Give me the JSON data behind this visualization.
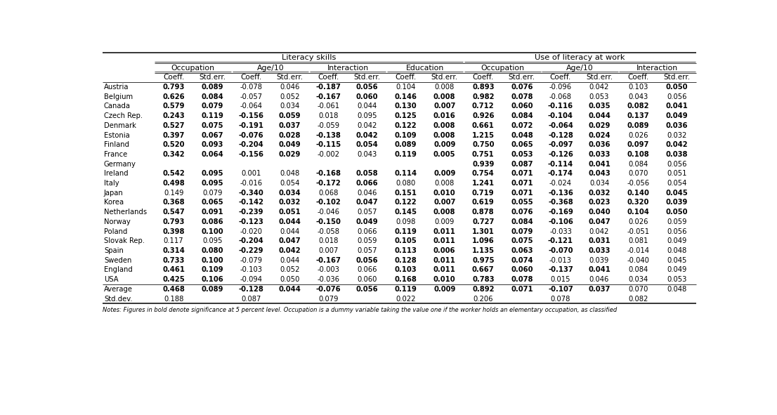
{
  "countries": [
    "Austria",
    "Belgium",
    "Canada",
    "Czech Rep.",
    "Denmark",
    "Estonia",
    "Finland",
    "France",
    "Germany",
    "Ireland",
    "Italy",
    "Japan",
    "Korea",
    "Netherlands",
    "Norway",
    "Poland",
    "Slovak Rep.",
    "Spain",
    "Sweden",
    "England",
    "USA",
    "Average",
    "Std.dev."
  ],
  "data": {
    "Austria": [
      "0.793",
      "0.089",
      "-0.078",
      "0.046",
      "-0.187",
      "0.056",
      "0.104",
      "0.008",
      "0.893",
      "0.076",
      "-0.096",
      "0.042",
      "0.103",
      "0.050"
    ],
    "Belgium": [
      "0.626",
      "0.084",
      "-0.057",
      "0.052",
      "-0.167",
      "0.060",
      "0.146",
      "0.008",
      "0.982",
      "0.078",
      "-0.068",
      "0.053",
      "0.043",
      "0.056"
    ],
    "Canada": [
      "0.579",
      "0.079",
      "-0.064",
      "0.034",
      "-0.061",
      "0.044",
      "0.130",
      "0.007",
      "0.712",
      "0.060",
      "-0.116",
      "0.035",
      "0.082",
      "0.041"
    ],
    "Czech Rep.": [
      "0.243",
      "0.119",
      "-0.156",
      "0.059",
      "0.018",
      "0.095",
      "0.125",
      "0.016",
      "0.926",
      "0.084",
      "-0.104",
      "0.044",
      "0.137",
      "0.049"
    ],
    "Denmark": [
      "0.527",
      "0.075",
      "-0.191",
      "0.037",
      "-0.059",
      "0.042",
      "0.122",
      "0.008",
      "0.661",
      "0.072",
      "-0.064",
      "0.029",
      "0.089",
      "0.036"
    ],
    "Estonia": [
      "0.397",
      "0.067",
      "-0.076",
      "0.028",
      "-0.138",
      "0.042",
      "0.109",
      "0.008",
      "1.215",
      "0.048",
      "-0.128",
      "0.024",
      "0.026",
      "0.032"
    ],
    "Finland": [
      "0.520",
      "0.093",
      "-0.204",
      "0.049",
      "-0.115",
      "0.054",
      "0.089",
      "0.009",
      "0.750",
      "0.065",
      "-0.097",
      "0.036",
      "0.097",
      "0.042"
    ],
    "France": [
      "0.342",
      "0.064",
      "-0.156",
      "0.029",
      "-0.002",
      "0.043",
      "0.119",
      "0.005",
      "0.751",
      "0.053",
      "-0.126",
      "0.033",
      "0.108",
      "0.038"
    ],
    "Germany": [
      "",
      "",
      "",
      "",
      "",
      "",
      "",
      "",
      "0.939",
      "0.087",
      "-0.114",
      "0.041",
      "0.084",
      "0.056"
    ],
    "Ireland": [
      "0.542",
      "0.095",
      "0.001",
      "0.048",
      "-0.168",
      "0.058",
      "0.114",
      "0.009",
      "0.754",
      "0.071",
      "-0.174",
      "0.043",
      "0.070",
      "0.051"
    ],
    "Italy": [
      "0.498",
      "0.095",
      "-0.016",
      "0.054",
      "-0.172",
      "0.066",
      "0.080",
      "0.008",
      "1.241",
      "0.071",
      "-0.024",
      "0.034",
      "-0.056",
      "0.054"
    ],
    "Japan": [
      "0.149",
      "0.079",
      "-0.340",
      "0.034",
      "0.068",
      "0.046",
      "0.151",
      "0.010",
      "0.719",
      "0.071",
      "-0.136",
      "0.032",
      "0.140",
      "0.045"
    ],
    "Korea": [
      "0.368",
      "0.065",
      "-0.142",
      "0.032",
      "-0.102",
      "0.047",
      "0.122",
      "0.007",
      "0.619",
      "0.055",
      "-0.368",
      "0.023",
      "0.320",
      "0.039"
    ],
    "Netherlands": [
      "0.547",
      "0.091",
      "-0.239",
      "0.051",
      "-0.046",
      "0.057",
      "0.145",
      "0.008",
      "0.878",
      "0.076",
      "-0.169",
      "0.040",
      "0.104",
      "0.050"
    ],
    "Norway": [
      "0.793",
      "0.086",
      "-0.123",
      "0.044",
      "-0.150",
      "0.049",
      "0.098",
      "0.009",
      "0.727",
      "0.084",
      "-0.106",
      "0.047",
      "0.026",
      "0.059"
    ],
    "Poland": [
      "0.398",
      "0.100",
      "-0.020",
      "0.044",
      "-0.058",
      "0.066",
      "0.119",
      "0.011",
      "1.301",
      "0.079",
      "-0.033",
      "0.042",
      "-0.051",
      "0.056"
    ],
    "Slovak Rep.": [
      "0.117",
      "0.095",
      "-0.204",
      "0.047",
      "0.018",
      "0.059",
      "0.105",
      "0.011",
      "1.096",
      "0.075",
      "-0.121",
      "0.031",
      "0.081",
      "0.049"
    ],
    "Spain": [
      "0.314",
      "0.080",
      "-0.229",
      "0.042",
      "0.007",
      "0.057",
      "0.113",
      "0.006",
      "1.135",
      "0.063",
      "-0.070",
      "0.033",
      "-0.014",
      "0.048"
    ],
    "Sweden": [
      "0.733",
      "0.100",
      "-0.079",
      "0.044",
      "-0.167",
      "0.056",
      "0.128",
      "0.011",
      "0.975",
      "0.074",
      "-0.013",
      "0.039",
      "-0.040",
      "0.045"
    ],
    "England": [
      "0.461",
      "0.109",
      "-0.103",
      "0.052",
      "-0.003",
      "0.066",
      "0.103",
      "0.011",
      "0.667",
      "0.060",
      "-0.137",
      "0.041",
      "0.084",
      "0.049"
    ],
    "USA": [
      "0.425",
      "0.106",
      "-0.094",
      "0.050",
      "-0.036",
      "0.060",
      "0.168",
      "0.010",
      "0.783",
      "0.078",
      "0.015",
      "0.046",
      "0.034",
      "0.053"
    ],
    "Average": [
      "0.468",
      "0.089",
      "-0.128",
      "0.044",
      "-0.076",
      "0.056",
      "0.119",
      "0.009",
      "0.892",
      "0.071",
      "-0.107",
      "0.037",
      "0.070",
      "0.048"
    ],
    "Std.dev.": [
      "0.188",
      "",
      "0.087",
      "",
      "0.079",
      "",
      "0.022",
      "",
      "0.206",
      "",
      "0.078",
      "",
      "0.082",
      ""
    ]
  },
  "bold_cols": {
    "Austria": [
      0,
      1,
      4,
      5,
      8,
      9,
      13
    ],
    "Belgium": [
      0,
      1,
      4,
      5,
      6,
      7,
      8,
      9
    ],
    "Canada": [
      0,
      1,
      6,
      7,
      8,
      9,
      10,
      11,
      12,
      13
    ],
    "Czech Rep.": [
      0,
      1,
      2,
      3,
      6,
      7,
      8,
      9,
      10,
      11,
      12,
      13
    ],
    "Denmark": [
      0,
      1,
      2,
      3,
      6,
      7,
      8,
      9,
      10,
      11,
      12,
      13
    ],
    "Estonia": [
      0,
      1,
      2,
      3,
      4,
      5,
      6,
      7,
      8,
      9,
      10,
      11
    ],
    "Finland": [
      0,
      1,
      2,
      3,
      4,
      5,
      6,
      7,
      8,
      9,
      10,
      11,
      12,
      13
    ],
    "France": [
      0,
      1,
      2,
      3,
      6,
      7,
      8,
      9,
      10,
      11,
      12,
      13
    ],
    "Germany": [
      8,
      9,
      10,
      11
    ],
    "Ireland": [
      0,
      1,
      4,
      5,
      6,
      7,
      8,
      9,
      10,
      11
    ],
    "Italy": [
      0,
      1,
      4,
      5,
      8,
      9
    ],
    "Japan": [
      2,
      3,
      6,
      7,
      8,
      9,
      10,
      11,
      12,
      13
    ],
    "Korea": [
      0,
      1,
      2,
      3,
      4,
      5,
      6,
      7,
      8,
      9,
      10,
      11,
      12,
      13
    ],
    "Netherlands": [
      0,
      1,
      2,
      3,
      6,
      7,
      8,
      9,
      10,
      11,
      12,
      13
    ],
    "Norway": [
      0,
      1,
      2,
      3,
      4,
      5,
      8,
      9,
      10,
      11
    ],
    "Poland": [
      0,
      1,
      6,
      7,
      8,
      9
    ],
    "Slovak Rep.": [
      2,
      3,
      6,
      7,
      8,
      9,
      10,
      11
    ],
    "Spain": [
      0,
      1,
      2,
      3,
      6,
      7,
      8,
      9,
      10,
      11
    ],
    "Sweden": [
      0,
      1,
      4,
      5,
      6,
      7,
      8,
      9
    ],
    "England": [
      0,
      1,
      6,
      7,
      8,
      9,
      10,
      11
    ],
    "USA": [
      0,
      1,
      6,
      7,
      8,
      9
    ],
    "Average": [
      0,
      1,
      2,
      3,
      4,
      5,
      6,
      7,
      8,
      9,
      10,
      11
    ],
    "Std.dev.": []
  },
  "note": "Notes: Figures in bold denote significance at 5 percent level. Occupation is a dummy variable taking the value one if the worker holds an elementary occupation, as classified"
}
